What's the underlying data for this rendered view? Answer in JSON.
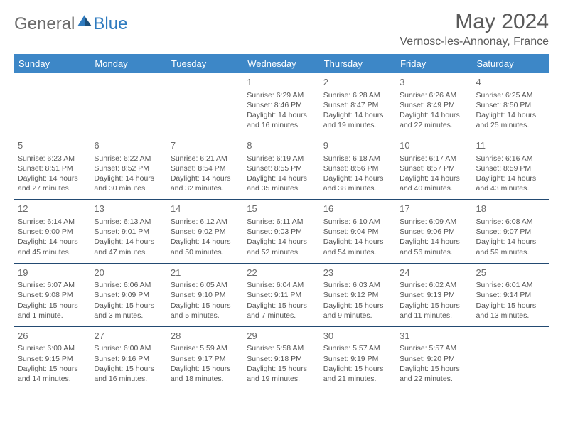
{
  "brand": {
    "general": "General",
    "blue": "Blue"
  },
  "title": "May 2024",
  "location": "Vernosc-les-Annonay, France",
  "colors": {
    "header_bg": "#3d87c7",
    "rule": "#234a72",
    "brand_blue": "#2f7bbf"
  },
  "dayNames": [
    "Sunday",
    "Monday",
    "Tuesday",
    "Wednesday",
    "Thursday",
    "Friday",
    "Saturday"
  ],
  "weeks": [
    [
      null,
      null,
      null,
      {
        "d": "1",
        "sr": "6:29 AM",
        "ss": "8:46 PM",
        "dl": "14 hours and 16 minutes."
      },
      {
        "d": "2",
        "sr": "6:28 AM",
        "ss": "8:47 PM",
        "dl": "14 hours and 19 minutes."
      },
      {
        "d": "3",
        "sr": "6:26 AM",
        "ss": "8:49 PM",
        "dl": "14 hours and 22 minutes."
      },
      {
        "d": "4",
        "sr": "6:25 AM",
        "ss": "8:50 PM",
        "dl": "14 hours and 25 minutes."
      }
    ],
    [
      {
        "d": "5",
        "sr": "6:23 AM",
        "ss": "8:51 PM",
        "dl": "14 hours and 27 minutes."
      },
      {
        "d": "6",
        "sr": "6:22 AM",
        "ss": "8:52 PM",
        "dl": "14 hours and 30 minutes."
      },
      {
        "d": "7",
        "sr": "6:21 AM",
        "ss": "8:54 PM",
        "dl": "14 hours and 32 minutes."
      },
      {
        "d": "8",
        "sr": "6:19 AM",
        "ss": "8:55 PM",
        "dl": "14 hours and 35 minutes."
      },
      {
        "d": "9",
        "sr": "6:18 AM",
        "ss": "8:56 PM",
        "dl": "14 hours and 38 minutes."
      },
      {
        "d": "10",
        "sr": "6:17 AM",
        "ss": "8:57 PM",
        "dl": "14 hours and 40 minutes."
      },
      {
        "d": "11",
        "sr": "6:16 AM",
        "ss": "8:59 PM",
        "dl": "14 hours and 43 minutes."
      }
    ],
    [
      {
        "d": "12",
        "sr": "6:14 AM",
        "ss": "9:00 PM",
        "dl": "14 hours and 45 minutes."
      },
      {
        "d": "13",
        "sr": "6:13 AM",
        "ss": "9:01 PM",
        "dl": "14 hours and 47 minutes."
      },
      {
        "d": "14",
        "sr": "6:12 AM",
        "ss": "9:02 PM",
        "dl": "14 hours and 50 minutes."
      },
      {
        "d": "15",
        "sr": "6:11 AM",
        "ss": "9:03 PM",
        "dl": "14 hours and 52 minutes."
      },
      {
        "d": "16",
        "sr": "6:10 AM",
        "ss": "9:04 PM",
        "dl": "14 hours and 54 minutes."
      },
      {
        "d": "17",
        "sr": "6:09 AM",
        "ss": "9:06 PM",
        "dl": "14 hours and 56 minutes."
      },
      {
        "d": "18",
        "sr": "6:08 AM",
        "ss": "9:07 PM",
        "dl": "14 hours and 59 minutes."
      }
    ],
    [
      {
        "d": "19",
        "sr": "6:07 AM",
        "ss": "9:08 PM",
        "dl": "15 hours and 1 minute."
      },
      {
        "d": "20",
        "sr": "6:06 AM",
        "ss": "9:09 PM",
        "dl": "15 hours and 3 minutes."
      },
      {
        "d": "21",
        "sr": "6:05 AM",
        "ss": "9:10 PM",
        "dl": "15 hours and 5 minutes."
      },
      {
        "d": "22",
        "sr": "6:04 AM",
        "ss": "9:11 PM",
        "dl": "15 hours and 7 minutes."
      },
      {
        "d": "23",
        "sr": "6:03 AM",
        "ss": "9:12 PM",
        "dl": "15 hours and 9 minutes."
      },
      {
        "d": "24",
        "sr": "6:02 AM",
        "ss": "9:13 PM",
        "dl": "15 hours and 11 minutes."
      },
      {
        "d": "25",
        "sr": "6:01 AM",
        "ss": "9:14 PM",
        "dl": "15 hours and 13 minutes."
      }
    ],
    [
      {
        "d": "26",
        "sr": "6:00 AM",
        "ss": "9:15 PM",
        "dl": "15 hours and 14 minutes."
      },
      {
        "d": "27",
        "sr": "6:00 AM",
        "ss": "9:16 PM",
        "dl": "15 hours and 16 minutes."
      },
      {
        "d": "28",
        "sr": "5:59 AM",
        "ss": "9:17 PM",
        "dl": "15 hours and 18 minutes."
      },
      {
        "d": "29",
        "sr": "5:58 AM",
        "ss": "9:18 PM",
        "dl": "15 hours and 19 minutes."
      },
      {
        "d": "30",
        "sr": "5:57 AM",
        "ss": "9:19 PM",
        "dl": "15 hours and 21 minutes."
      },
      {
        "d": "31",
        "sr": "5:57 AM",
        "ss": "9:20 PM",
        "dl": "15 hours and 22 minutes."
      },
      null
    ]
  ],
  "labels": {
    "sunrise": "Sunrise: ",
    "sunset": "Sunset: ",
    "daylight": "Daylight: "
  }
}
